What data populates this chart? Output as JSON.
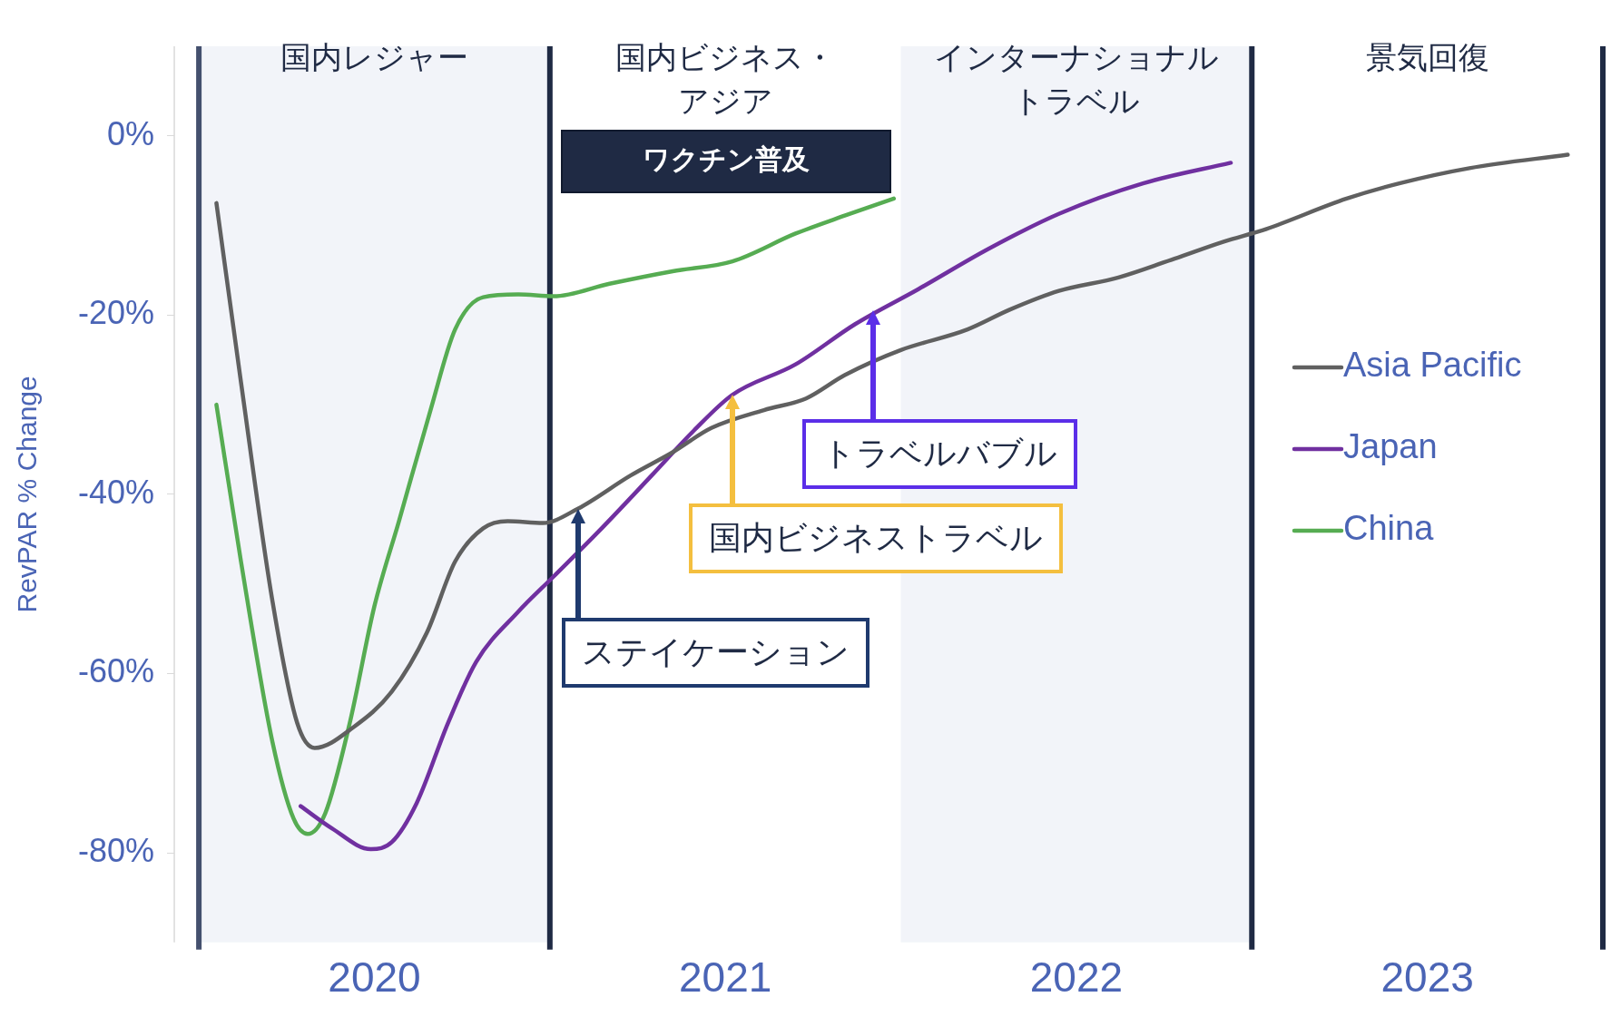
{
  "chart_data": {
    "type": "line",
    "ylabel": "RevPAR % Change",
    "xlim": [
      2019.93,
      2024
    ],
    "xticks": [
      {
        "value": 2020.5,
        "label": "2020"
      },
      {
        "value": 2021.5,
        "label": "2021"
      },
      {
        "value": 2022.5,
        "label": "2022"
      },
      {
        "value": 2023.5,
        "label": "2023"
      }
    ],
    "ylim": [
      -90,
      10
    ],
    "yticks": [
      {
        "value": 0,
        "label": "0%"
      },
      {
        "value": -20,
        "label": "-20%"
      },
      {
        "value": -40,
        "label": "-40%"
      },
      {
        "value": -60,
        "label": "-60%"
      },
      {
        "value": -80,
        "label": "-80%"
      }
    ],
    "grid": false,
    "legend": "right",
    "marker": "none",
    "line_style": "solid",
    "series": [
      {
        "name": "Asia Pacific",
        "color": "#606060",
        "x": [
          2020.05,
          2020.12,
          2020.21,
          2020.28,
          2020.33,
          2020.44,
          2020.55,
          2020.65,
          2020.73,
          2020.81,
          2020.88,
          2020.98,
          2021.08,
          2021.23,
          2021.35,
          2021.46,
          2021.61,
          2021.73,
          2021.84,
          2022.0,
          2022.19,
          2022.31,
          2022.45,
          2022.62,
          2022.78,
          2022.92,
          2023.04,
          2023.27,
          2023.42,
          2023.62,
          2023.9
        ],
        "values": [
          -7.5,
          -27.5,
          -52,
          -65.5,
          -68.3,
          -66,
          -62,
          -55.4,
          -47.5,
          -43.8,
          -43,
          -43.2,
          -41.6,
          -37.9,
          -35.3,
          -32.6,
          -30.6,
          -29.3,
          -26.7,
          -23.9,
          -21.6,
          -19.4,
          -17.3,
          -15.8,
          -13.7,
          -11.8,
          -10.4,
          -7,
          -5.3,
          -3.6,
          -2.1
        ]
      },
      {
        "name": "Japan",
        "color": "#7030a0",
        "x": [
          2020.29,
          2020.38,
          2020.49,
          2020.55,
          2020.62,
          2020.71,
          2020.79,
          2020.91,
          2021.01,
          2021.14,
          2021.29,
          2021.41,
          2021.52,
          2021.7,
          2021.87,
          2022.05,
          2022.25,
          2022.45,
          2022.69,
          2022.94
        ],
        "values": [
          -74.8,
          -77.3,
          -79.6,
          -78.8,
          -74.5,
          -65.5,
          -58.7,
          -53.1,
          -49.2,
          -44.1,
          -37.9,
          -32.9,
          -28.9,
          -25.5,
          -21,
          -17.1,
          -12.6,
          -8.7,
          -5.3,
          -3
        ]
      },
      {
        "name": "China",
        "color": "#56ac52",
        "x": [
          2020.05,
          2020.12,
          2020.21,
          2020.27,
          2020.31,
          2020.36,
          2020.43,
          2020.5,
          2020.57,
          2020.66,
          2020.73,
          2020.81,
          2020.91,
          2021.01,
          2021.17,
          2021.35,
          2021.52,
          2021.7,
          2021.84,
          2021.98
        ],
        "values": [
          -30,
          -47.5,
          -67.7,
          -76.2,
          -77.9,
          -75.6,
          -65.5,
          -52.5,
          -43,
          -30.6,
          -21.6,
          -18,
          -17.7,
          -17.9,
          -16.5,
          -15.1,
          -14,
          -10.9,
          -8.9,
          -7
        ]
      }
    ],
    "bands": [
      {
        "axis": "x",
        "from": 2020,
        "to": 2021,
        "label": "国内レジャー",
        "color": "#f2f4f9"
      },
      {
        "axis": "x",
        "from": 2022,
        "to": 2023,
        "label": "インターナショナルトラベル",
        "color": "#f2f4f9"
      }
    ],
    "ref_lines": [
      {
        "axis": "x",
        "value": 2020,
        "color": "#44506e"
      },
      {
        "axis": "x",
        "value": 2021,
        "color": "#1f2a44"
      },
      {
        "axis": "x",
        "value": 2023,
        "color": "#1f2a44"
      },
      {
        "axis": "x",
        "value": 2024,
        "color": "#1f2a44"
      }
    ],
    "annotations": [
      "国内ビジネス・アジア",
      "景気回復",
      "ワクチン普及",
      "ステイケーション",
      "国内ビジネストラベル",
      "トラベルバブル"
    ]
  }
}
